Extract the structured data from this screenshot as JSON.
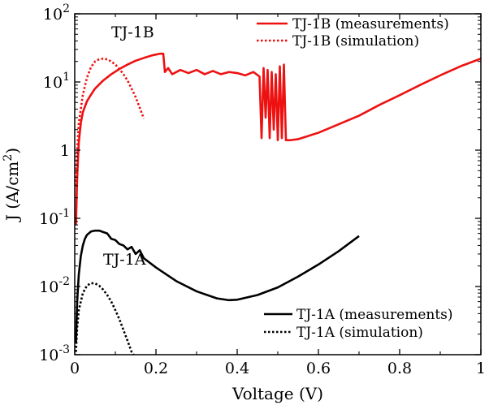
{
  "chart_data": {
    "type": "line",
    "xlabel": "Voltage (V)",
    "ylabel": "J (A/cm",
    "ylabel_sup": "2",
    "ylabel_end": ")",
    "xscale": "linear",
    "yscale": "log",
    "xlim": [
      0,
      1
    ],
    "ylim": [
      0.001,
      100
    ],
    "grid": false,
    "x_ticks": [
      {
        "value": 0,
        "label": "0"
      },
      {
        "value": 0.2,
        "label": "0.2"
      },
      {
        "value": 0.4,
        "label": "0.4"
      },
      {
        "value": 0.6,
        "label": "0.6"
      },
      {
        "value": 0.8,
        "label": "0.8"
      },
      {
        "value": 1,
        "label": "1"
      }
    ],
    "y_ticks": [
      {
        "value": 100,
        "base": "10",
        "exp": "2"
      },
      {
        "value": 10,
        "base": "10",
        "exp": "1"
      },
      {
        "value": 1,
        "base": "1",
        "exp": ""
      },
      {
        "value": 0.1,
        "base": "10",
        "exp": "-1"
      },
      {
        "value": 0.01,
        "base": "10",
        "exp": "-2"
      },
      {
        "value": 0.001,
        "base": "10",
        "exp": "-3"
      }
    ],
    "annotations": [
      {
        "text": "TJ-1B",
        "x": 0.09,
        "y": 45
      },
      {
        "text": "TJ-1A",
        "x": 0.07,
        "y": 0.021
      }
    ],
    "legends": [
      {
        "position": "top-right",
        "entries": [
          {
            "label": "TJ-1B (measurements)",
            "color": "#ee1111",
            "dash": "solid"
          },
          {
            "label": "TJ-1B (simulation)",
            "color": "#ee1111",
            "dash": "dotted"
          }
        ]
      },
      {
        "position": "bottom-right",
        "entries": [
          {
            "label": "TJ-1A (measurements)",
            "color": "#000000",
            "dash": "solid"
          },
          {
            "label": "TJ-1A (simulation)",
            "color": "#000000",
            "dash": "dotted"
          }
        ]
      }
    ],
    "series": [
      {
        "name": "TJ-1B (measurements)",
        "color": "#ee1111",
        "dash": "solid",
        "x": [
          0.003,
          0.006,
          0.01,
          0.015,
          0.02,
          0.03,
          0.04,
          0.05,
          0.07,
          0.09,
          0.11,
          0.13,
          0.15,
          0.17,
          0.19,
          0.21,
          0.218,
          0.222,
          0.23,
          0.24,
          0.26,
          0.28,
          0.3,
          0.32,
          0.34,
          0.36,
          0.38,
          0.4,
          0.42,
          0.44,
          0.455,
          0.46,
          0.465,
          0.47,
          0.475,
          0.48,
          0.485,
          0.49,
          0.495,
          0.5,
          0.505,
          0.51,
          0.515,
          0.52,
          0.525,
          0.53,
          0.55,
          0.6,
          0.65,
          0.7,
          0.75,
          0.8,
          0.85,
          0.9,
          0.95,
          1.0
        ],
        "y": [
          0.08,
          0.4,
          1.3,
          2.5,
          3.6,
          5.2,
          6.5,
          8.0,
          10.5,
          13.0,
          15.5,
          18.0,
          20.5,
          22.5,
          24.5,
          26,
          26,
          14,
          16,
          13,
          15,
          13.5,
          15,
          13,
          14.5,
          13,
          14,
          13.5,
          12.5,
          14,
          12,
          1.5,
          16,
          3,
          15,
          1.5,
          14,
          2,
          13,
          1.4,
          17,
          1.5,
          18,
          1.4,
          1.4,
          1.4,
          1.45,
          1.8,
          2.4,
          3.2,
          4.6,
          6.4,
          9.0,
          12.5,
          17.0,
          22.0
        ]
      },
      {
        "name": "TJ-1B (simulation)",
        "color": "#ee1111",
        "dash": "dotted",
        "x": [
          0.003,
          0.006,
          0.01,
          0.02,
          0.03,
          0.04,
          0.05,
          0.06,
          0.07,
          0.08,
          0.09,
          0.1,
          0.11,
          0.12,
          0.13,
          0.14,
          0.15,
          0.16,
          0.17
        ],
        "y": [
          0.3,
          1.0,
          2.5,
          6.5,
          11.5,
          16.5,
          20.0,
          21.5,
          22.0,
          21.5,
          20.0,
          18.0,
          15.5,
          13.0,
          10.5,
          8.0,
          6.0,
          4.2,
          2.9
        ]
      },
      {
        "name": "TJ-1A (measurements)",
        "color": "#000000",
        "dash": "solid",
        "x": [
          0.003,
          0.006,
          0.01,
          0.015,
          0.02,
          0.025,
          0.03,
          0.04,
          0.05,
          0.06,
          0.07,
          0.08,
          0.09,
          0.1,
          0.11,
          0.12,
          0.13,
          0.14,
          0.15,
          0.16,
          0.17,
          0.2,
          0.25,
          0.3,
          0.35,
          0.38,
          0.4,
          0.45,
          0.5,
          0.55,
          0.6,
          0.65,
          0.7
        ],
        "y": [
          0.0015,
          0.006,
          0.015,
          0.028,
          0.04,
          0.05,
          0.057,
          0.064,
          0.066,
          0.066,
          0.063,
          0.06,
          0.05,
          0.048,
          0.042,
          0.04,
          0.035,
          0.038,
          0.03,
          0.034,
          0.026,
          0.019,
          0.012,
          0.0085,
          0.0067,
          0.0063,
          0.0064,
          0.0075,
          0.0097,
          0.014,
          0.021,
          0.033,
          0.055
        ]
      },
      {
        "name": "TJ-1A (simulation)",
        "color": "#000000",
        "dash": "dotted",
        "x": [
          0.003,
          0.006,
          0.01,
          0.02,
          0.03,
          0.04,
          0.05,
          0.06,
          0.07,
          0.08,
          0.09,
          0.1,
          0.11,
          0.12,
          0.13,
          0.14,
          0.145
        ],
        "y": [
          0.0011,
          0.0025,
          0.0045,
          0.008,
          0.0103,
          0.0112,
          0.0111,
          0.0103,
          0.009,
          0.0075,
          0.006,
          0.0045,
          0.0033,
          0.0023,
          0.0016,
          0.0011,
          0.001
        ]
      }
    ]
  }
}
